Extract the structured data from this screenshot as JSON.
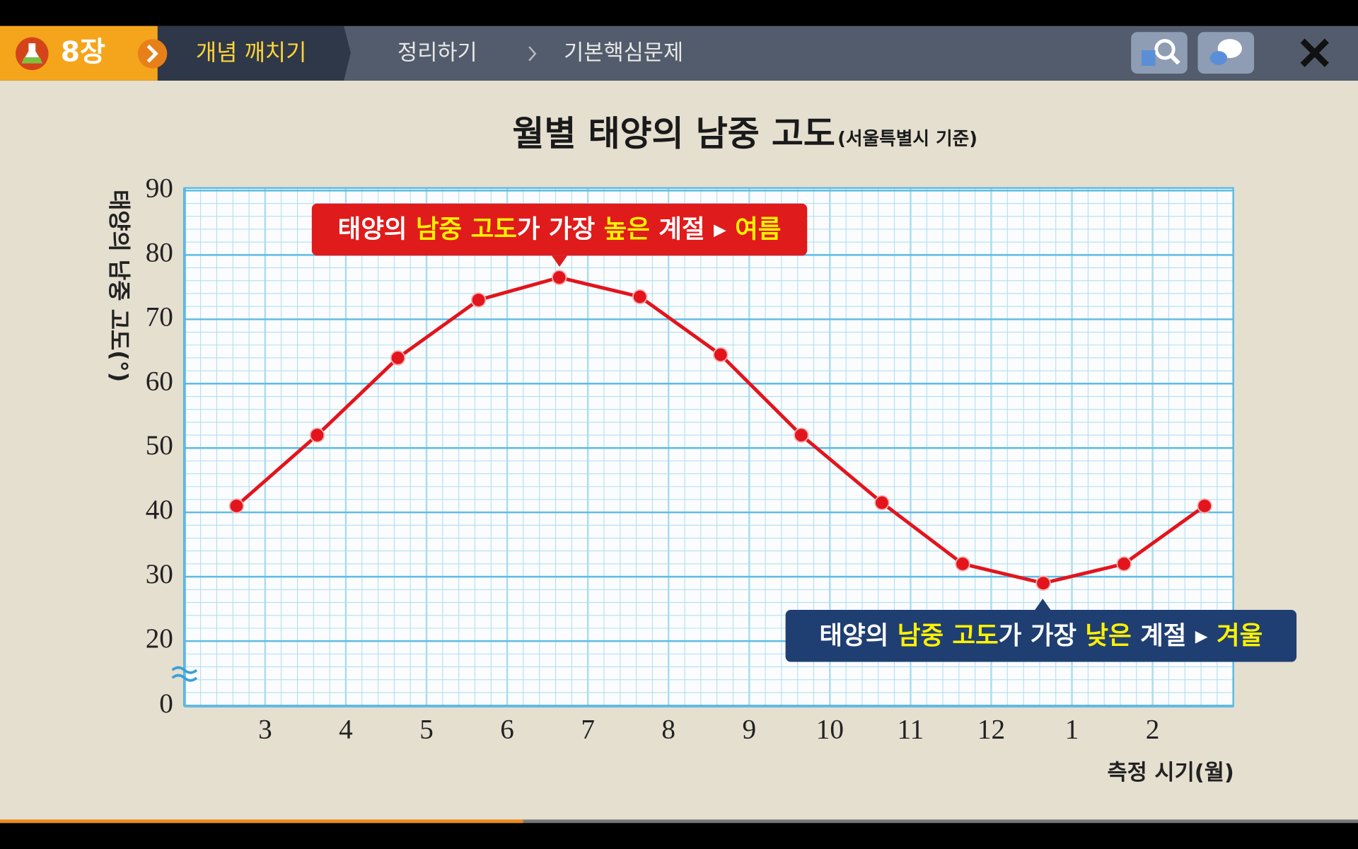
{
  "nav": {
    "chapter": "8장",
    "current": "개념 깨치기",
    "steps": [
      "정리하기",
      "기본핵심문제"
    ]
  },
  "chart_data": {
    "type": "line",
    "title": "월별 태양의 남중 고도",
    "subtitle": "(서울특별시 기준)",
    "y_label": "태양의 남중 고도(°)",
    "x_label": "측정 시기(월)",
    "categories": [
      "3",
      "4",
      "5",
      "6",
      "7",
      "8",
      "9",
      "10",
      "11",
      "12",
      "1",
      "2",
      null
    ],
    "values": [
      41,
      52,
      64,
      73,
      76.5,
      73.5,
      64.5,
      52,
      41.5,
      32,
      29,
      32,
      41
    ],
    "color": "#e3141c",
    "ylim": [
      0,
      90
    ],
    "yticks": [
      0,
      20,
      30,
      40,
      50,
      60,
      70,
      80,
      90
    ],
    "axis_break": [
      0,
      20
    ],
    "grid": true,
    "annotations": [
      {
        "parts": [
          "태양의 ",
          "남중 고도",
          "가 가장 ",
          "높은",
          " 계절 ▸ ",
          "여름"
        ],
        "color": "#e01b1b"
      },
      {
        "parts": [
          "태양의 ",
          "남중 고도",
          "가 가장 ",
          "낮은",
          " 계절 ▸ ",
          "겨울"
        ],
        "color": "#1f3f73"
      }
    ]
  }
}
